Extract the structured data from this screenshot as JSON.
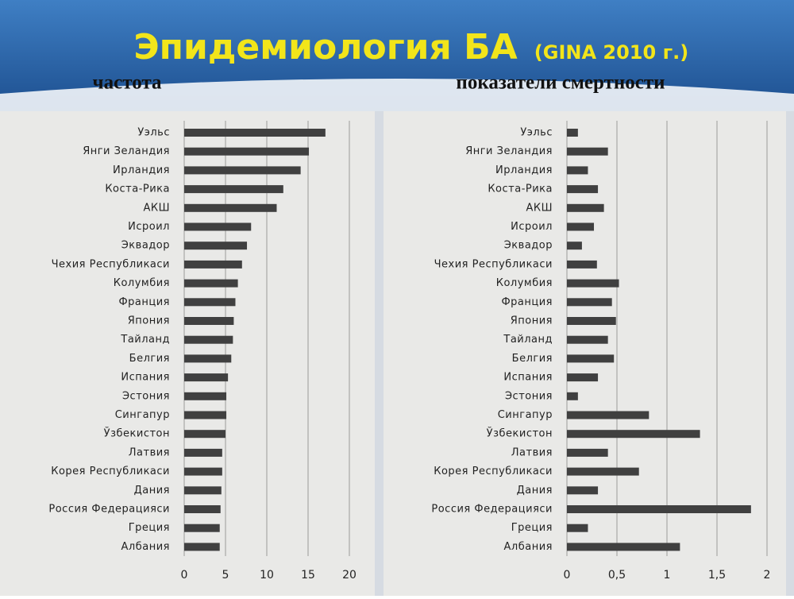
{
  "header": {
    "title": "Эпидемиология БА",
    "subtitle": "(GINA 2010 г.)"
  },
  "chart_data": [
    {
      "type": "bar",
      "orientation": "horizontal",
      "title": "частота",
      "color": "#404040",
      "grid": true,
      "categories": [
        "Уэльс",
        "Янги Зеландия",
        "Ирландия",
        "Коста-Рика",
        "АКШ",
        "Исроил",
        "Эквадор",
        "Чехия Республикаси",
        "Колумбия",
        "Франция",
        "Япония",
        "Тайланд",
        "Белгия",
        "Испания",
        "Эстония",
        "Сингапур",
        "Ўзбекистон",
        "Латвия",
        "Корея Республикаси",
        "Дания",
        "Россия Федерацияси",
        "Греция",
        "Албания"
      ],
      "values": [
        17.1,
        15.1,
        14.1,
        12,
        11.2,
        8.1,
        7.6,
        7.0,
        6.5,
        6.2,
        6.0,
        5.9,
        5.7,
        5.3,
        5.1,
        5.1,
        5.0,
        4.6,
        4.6,
        4.5,
        4.4,
        4.3,
        4.3
      ],
      "xlim": [
        0,
        20
      ],
      "xticks": [
        0,
        5,
        10,
        15,
        20
      ]
    },
    {
      "type": "bar",
      "orientation": "horizontal",
      "title": "показатели смертности",
      "color": "#404040",
      "grid": true,
      "categories": [
        "Уэльс",
        "Янги Зеландия",
        "Ирландия",
        "Коста-Рика",
        "АКШ",
        "Исроил",
        "Эквадор",
        "Чехия Республикаси",
        "Колумбия",
        "Франция",
        "Япония",
        "Тайланд",
        "Белгия",
        "Испания",
        "Эстония",
        "Сингапур",
        "Ўзбекистон",
        "Латвия",
        "Корея Республикаси",
        "Дания",
        "Россия Федерацияси",
        "Греция",
        "Албания"
      ],
      "values": [
        0.11,
        0.41,
        0.21,
        0.31,
        0.37,
        0.27,
        0.15,
        0.3,
        0.52,
        0.45,
        0.49,
        0.41,
        0.47,
        0.31,
        0.11,
        0.82,
        1.33,
        0.41,
        0.72,
        0.31,
        1.84,
        0.21,
        1.13
      ],
      "xlim": [
        0,
        2
      ],
      "xticks": [
        0,
        {
          "value": 0.5,
          "label": "0,5"
        },
        1,
        {
          "value": 1.5,
          "label": "1,5"
        },
        2
      ]
    }
  ]
}
